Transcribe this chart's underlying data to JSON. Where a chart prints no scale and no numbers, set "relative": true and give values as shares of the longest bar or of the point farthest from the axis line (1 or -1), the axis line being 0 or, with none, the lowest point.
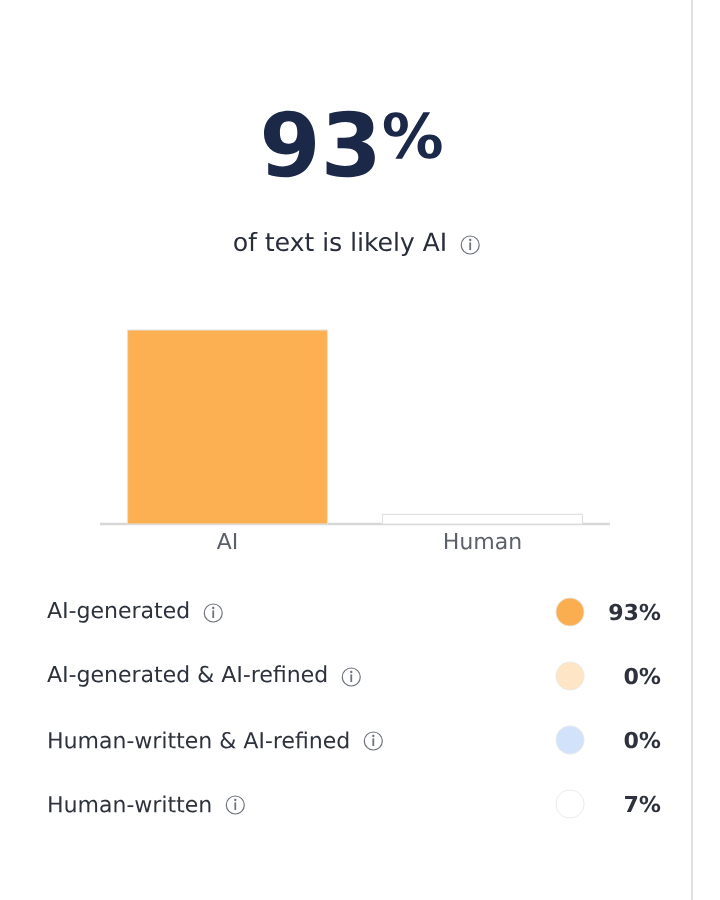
{
  "chart_data": [
    {
      "type": "bar",
      "title": "93$^{%}$",
      "subtitle": "of text is likely AI",
      "categories": [
        "AI",
        "Human"
      ],
      "values": [
        1,
        0.05
      ],
      "colors": [
        "#fdb052",
        "#ffffff"
      ],
      "relative": true
    },
    {
      "type": "other",
      "categories": [
        "AI-generated",
        "AI-generated & AI-refined",
        "Human-written & AI-refined",
        "Human-written"
      ],
      "colors": [
        "#fbae4f",
        "#fde5c5",
        "#d3e2fb",
        "#ffffff"
      ],
      "value_labels": [
        "93%",
        "0%",
        "0%",
        "7%"
      ]
    }
  ]
}
